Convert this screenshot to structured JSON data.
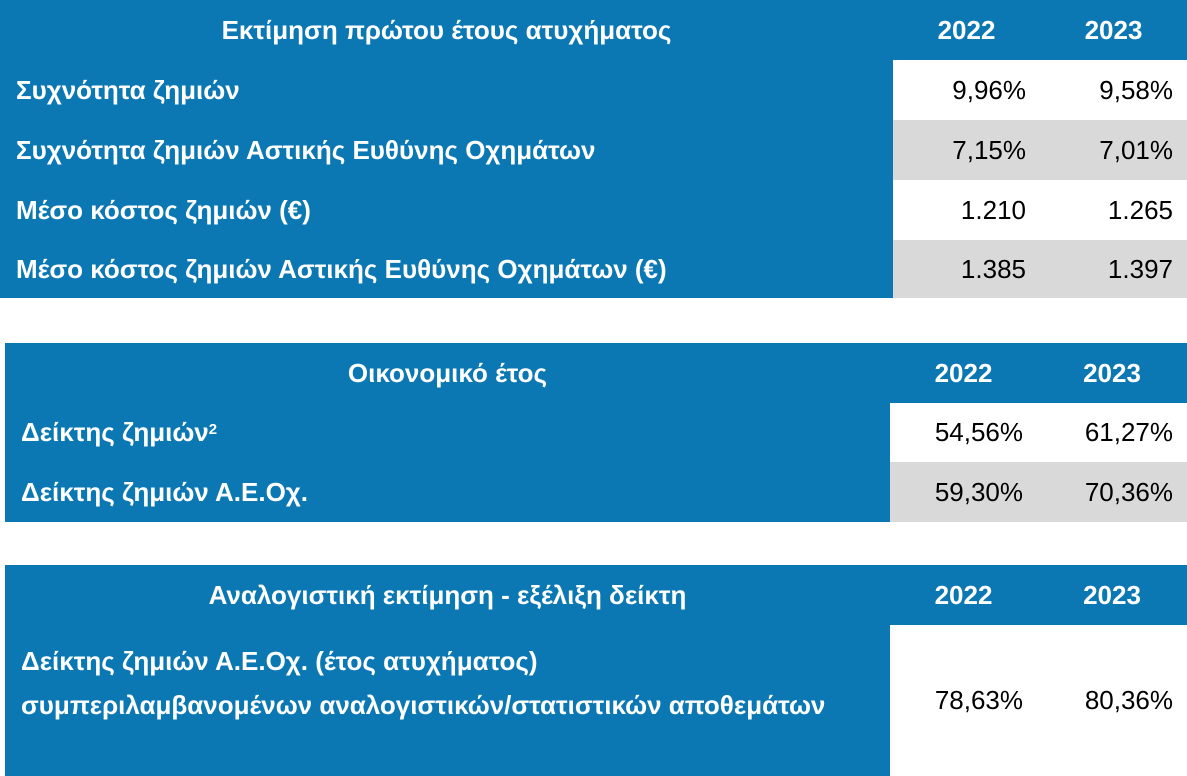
{
  "tables": [
    {
      "header": {
        "title": "Εκτίμηση πρώτου έτους ατυχήματος",
        "years": [
          "2022",
          "2023"
        ]
      },
      "rows": [
        {
          "label": "Συχνότητα ζημιών",
          "values": [
            "9,96%",
            "9,58%"
          ]
        },
        {
          "label": "Συχνότητα ζημιών Αστικής Ευθύνης Οχημάτων",
          "values": [
            "7,15%",
            "7,01%"
          ]
        },
        {
          "label": "Μέσο κόστος ζημιών (€)",
          "values": [
            "1.210",
            "1.265"
          ]
        },
        {
          "label": "Μέσο κόστος ζημιών Αστικής Ευθύνης Οχημάτων (€)",
          "values": [
            "1.385",
            "1.397"
          ]
        }
      ]
    },
    {
      "header": {
        "title": "Οικονομικό έτος",
        "years": [
          "2022",
          "2023"
        ]
      },
      "rows": [
        {
          "label": "Δείκτης ζημιών",
          "note": "2",
          "values": [
            "54,56%",
            "61,27%"
          ]
        },
        {
          "label": "Δείκτης ζημιών Α.Ε.Οχ.",
          "values": [
            "59,30%",
            "70,36%"
          ]
        }
      ]
    },
    {
      "header": {
        "title": "Αναλογιστική εκτίμηση -  εξέλιξη δείκτη",
        "years": [
          "2022",
          "2023"
        ]
      },
      "rows": [
        {
          "label_lines": [
            "Δείκτης ζημιών Α.Ε.Οχ. (έτος ατυχήματος)",
            "συμπεριλαμβανομένων αναλογιστικών/στατιστικών αποθεμάτων"
          ],
          "values": [
            "78,63%",
            "80,36%"
          ]
        }
      ]
    }
  ]
}
